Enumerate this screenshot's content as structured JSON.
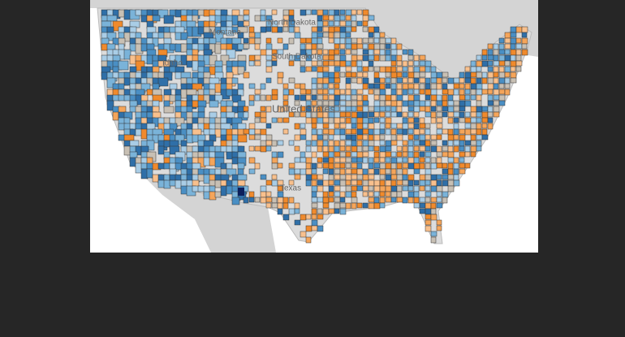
{
  "map": {
    "labels": [
      "Montana",
      "North Dakota",
      "South Dakota",
      "Idaho",
      "United States",
      "Texas"
    ]
  }
}
